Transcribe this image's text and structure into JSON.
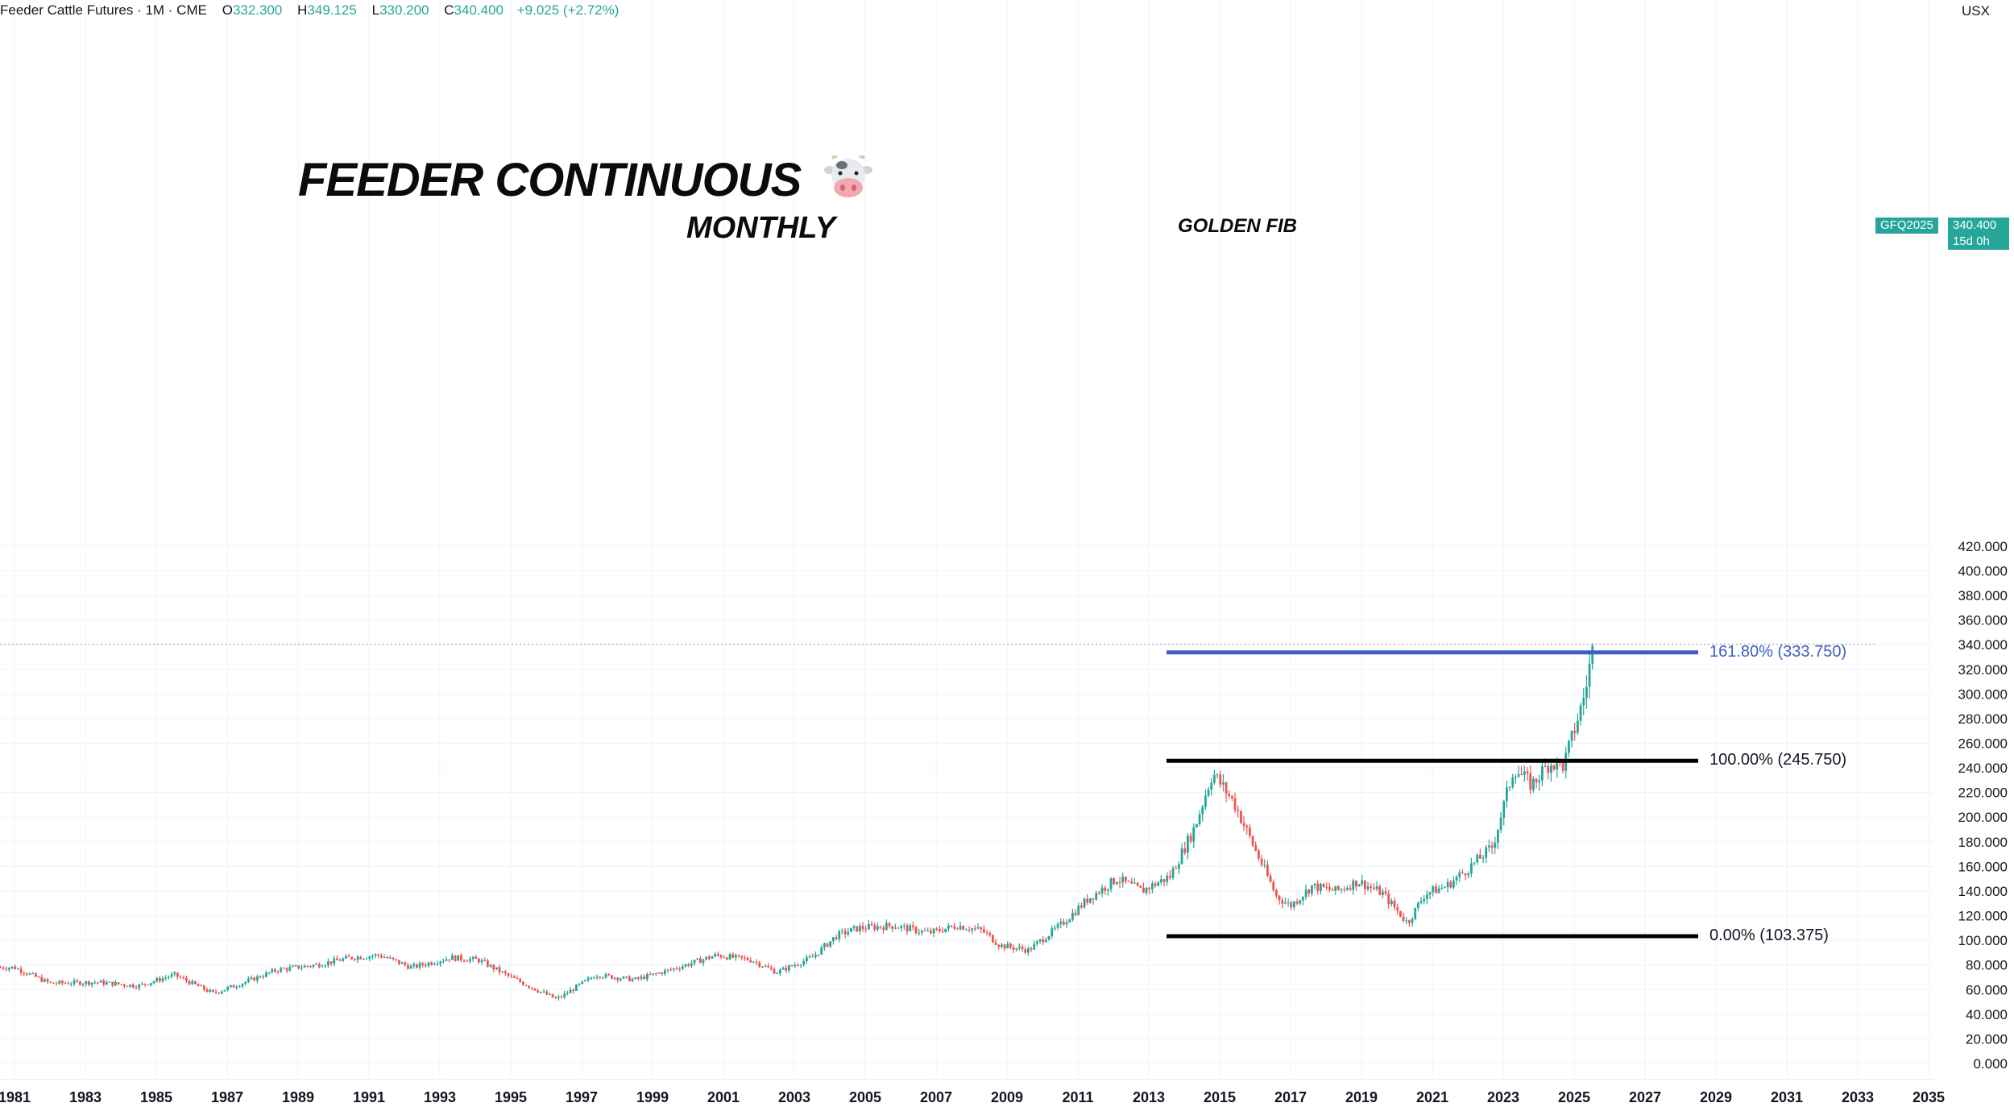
{
  "header": {
    "symbol": "Feeder Cattle Futures · 1M · CME",
    "o_label": "O",
    "o_value": "332.300",
    "h_label": "H",
    "h_value": "349.125",
    "l_label": "L",
    "l_value": "330.200",
    "c_label": "C",
    "c_value": "340.400",
    "change": "+9.025 (+2.72%)"
  },
  "currency": "USX",
  "annotations": {
    "title": "FEEDER CONTINUOUS",
    "timeframe": "MONTHLY",
    "golden_fib": "GOLDEN FIB",
    "cow_icon": "cow-face-icon"
  },
  "price_tag": {
    "symbol": "GFQ2025",
    "price": "340.400",
    "countdown": "15d 0h"
  },
  "colors": {
    "up": "#26a69a",
    "down": "#ef5350",
    "fib_golden": "#3d5fbf",
    "fib_level": "#000000",
    "grid": "#f0f3fa"
  },
  "chart_data": {
    "type": "candlestick",
    "interval": "1M",
    "y_axis": {
      "min": 0,
      "max": 420,
      "step": 20,
      "position": "right",
      "decimals": 3
    },
    "x_axis": {
      "start_year": 1981,
      "end_year": 2036,
      "tick_labels": [
        "1981",
        "1983",
        "1985",
        "1987",
        "1989",
        "1991",
        "1993",
        "1995",
        "1997",
        "1999",
        "2001",
        "2003",
        "2005",
        "2007",
        "2009",
        "2011",
        "2013",
        "2015",
        "2017",
        "2019",
        "2021",
        "2023",
        "2025",
        "2027",
        "2029",
        "2031",
        "2033",
        "2035"
      ]
    },
    "price_path_approx": [
      [
        1981.0,
        78
      ],
      [
        1982.0,
        65
      ],
      [
        1983.3,
        66
      ],
      [
        1984.5,
        63
      ],
      [
        1985.5,
        72
      ],
      [
        1986.6,
        57
      ],
      [
        1987.5,
        66
      ],
      [
        1988.4,
        76
      ],
      [
        1989.5,
        80
      ],
      [
        1990.5,
        86
      ],
      [
        1991.3,
        88
      ],
      [
        1992.2,
        78
      ],
      [
        1993.3,
        86
      ],
      [
        1994.1,
        84
      ],
      [
        1995.0,
        70
      ],
      [
        1996.3,
        52
      ],
      [
        1997.4,
        72
      ],
      [
        1998.5,
        68
      ],
      [
        1999.5,
        76
      ],
      [
        2000.8,
        88
      ],
      [
        2001.8,
        84
      ],
      [
        2002.5,
        74
      ],
      [
        2003.5,
        86
      ],
      [
        2004.2,
        104
      ],
      [
        2004.8,
        110
      ],
      [
        2005.8,
        112
      ],
      [
        2006.8,
        106
      ],
      [
        2007.6,
        112
      ],
      [
        2008.3,
        108
      ],
      [
        2008.8,
        96
      ],
      [
        2009.6,
        92
      ],
      [
        2010.5,
        112
      ],
      [
        2011.3,
        134
      ],
      [
        2012.1,
        150
      ],
      [
        2012.8,
        140
      ],
      [
        2013.6,
        152
      ],
      [
        2014.3,
        192
      ],
      [
        2014.8,
        236
      ],
      [
        2015.4,
        212
      ],
      [
        2015.9,
        180
      ],
      [
        2016.6,
        136
      ],
      [
        2017.0,
        128
      ],
      [
        2017.6,
        144
      ],
      [
        2018.3,
        140
      ],
      [
        2018.9,
        148
      ],
      [
        2019.6,
        138
      ],
      [
        2020.3,
        114
      ],
      [
        2020.8,
        138
      ],
      [
        2021.4,
        144
      ],
      [
        2022.0,
        158
      ],
      [
        2022.7,
        176
      ],
      [
        2023.3,
        240
      ],
      [
        2023.8,
        226
      ],
      [
        2024.3,
        244
      ],
      [
        2024.7,
        242
      ],
      [
        2025.0,
        270
      ],
      [
        2025.3,
        300
      ],
      [
        2025.5,
        334
      ],
      [
        2025.58,
        340.4
      ]
    ],
    "levels": [
      {
        "name": "golden-fib",
        "label": "161.80% (333.750)",
        "value": 333.75,
        "color": "#3d5fbf",
        "x_start": 2013.5,
        "x_end": 2028.5
      },
      {
        "name": "fib-100",
        "label": "100.00% (245.750)",
        "value": 245.75,
        "color": "#000000",
        "x_start": 2013.5,
        "x_end": 2028.5
      },
      {
        "name": "fib-0",
        "label": "0.00% (103.375)",
        "value": 103.375,
        "color": "#000000",
        "x_start": 2013.5,
        "x_end": 2028.5
      }
    ],
    "last_price": 340.4,
    "grid": true
  }
}
